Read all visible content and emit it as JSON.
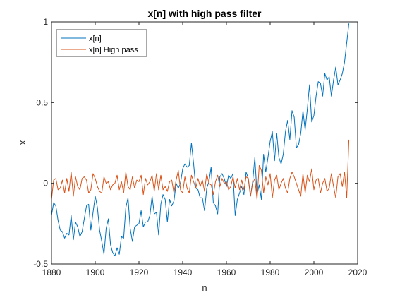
{
  "chart_data": {
    "type": "line",
    "title": "x[n] with high pass filter",
    "xlabel": "n",
    "ylabel": "x",
    "xlim": [
      1880,
      2020
    ],
    "ylim": [
      -0.5,
      1
    ],
    "xticks": [
      1880,
      1900,
      1920,
      1940,
      1960,
      1980,
      2000,
      2020
    ],
    "yticks": [
      -0.5,
      0,
      0.5,
      1
    ],
    "ytick_labels": [
      "-0.5",
      "0",
      "0.5",
      "1"
    ],
    "grid": false,
    "legend": "top-left",
    "series": [
      {
        "name": "x[n]",
        "color": "#0072BD",
        "x": [
          1880,
          1881,
          1882,
          1883,
          1884,
          1885,
          1886,
          1887,
          1888,
          1889,
          1890,
          1891,
          1892,
          1893,
          1894,
          1895,
          1896,
          1897,
          1898,
          1899,
          1900,
          1901,
          1902,
          1903,
          1904,
          1905,
          1906,
          1907,
          1908,
          1909,
          1910,
          1911,
          1912,
          1913,
          1914,
          1915,
          1916,
          1917,
          1918,
          1919,
          1920,
          1921,
          1922,
          1923,
          1924,
          1925,
          1926,
          1927,
          1928,
          1929,
          1930,
          1931,
          1932,
          1933,
          1934,
          1935,
          1936,
          1937,
          1938,
          1939,
          1940,
          1941,
          1942,
          1943,
          1944,
          1945,
          1946,
          1947,
          1948,
          1949,
          1950,
          1951,
          1952,
          1953,
          1954,
          1955,
          1956,
          1957,
          1958,
          1959,
          1960,
          1961,
          1962,
          1963,
          1964,
          1965,
          1966,
          1967,
          1968,
          1969,
          1970,
          1971,
          1972,
          1973,
          1974,
          1975,
          1976,
          1977,
          1978,
          1979,
          1980,
          1981,
          1982,
          1983,
          1984,
          1985,
          1986,
          1987,
          1988,
          1989,
          1990,
          1991,
          1992,
          1993,
          1994,
          1995,
          1996,
          1997,
          1998,
          1999,
          2000,
          2001,
          2002,
          2003,
          2004,
          2005,
          2006,
          2007,
          2008,
          2009,
          2010,
          2011,
          2012,
          2013,
          2014,
          2015,
          2016
        ],
        "values": [
          -0.2,
          -0.12,
          -0.14,
          -0.23,
          -0.29,
          -0.3,
          -0.34,
          -0.31,
          -0.32,
          -0.2,
          -0.35,
          -0.24,
          -0.27,
          -0.33,
          -0.3,
          -0.22,
          -0.14,
          -0.13,
          -0.29,
          -0.18,
          -0.08,
          -0.15,
          -0.29,
          -0.36,
          -0.44,
          -0.28,
          -0.22,
          -0.38,
          -0.43,
          -0.45,
          -0.4,
          -0.44,
          -0.33,
          -0.34,
          -0.15,
          -0.09,
          -0.28,
          -0.36,
          -0.27,
          -0.26,
          -0.25,
          -0.17,
          -0.27,
          -0.24,
          -0.24,
          -0.2,
          -0.08,
          -0.19,
          -0.18,
          -0.32,
          -0.13,
          -0.07,
          -0.1,
          -0.24,
          -0.1,
          -0.14,
          -0.11,
          0.0,
          -0.03,
          0.0,
          0.09,
          0.12,
          0.1,
          0.11,
          0.25,
          0.12,
          -0.03,
          -0.04,
          -0.09,
          -0.09,
          -0.17,
          -0.03,
          0.01,
          0.1,
          -0.12,
          -0.14,
          -0.19,
          0.04,
          0.06,
          0.03,
          -0.02,
          0.05,
          0.03,
          0.06,
          -0.2,
          -0.1,
          -0.06,
          -0.02,
          -0.07,
          0.07,
          0.03,
          -0.08,
          0.01,
          0.16,
          -0.07,
          -0.01,
          -0.1,
          0.18,
          0.07,
          0.16,
          0.26,
          0.32,
          0.14,
          0.31,
          0.16,
          0.12,
          0.18,
          0.32,
          0.39,
          0.27,
          0.45,
          0.41,
          0.22,
          0.24,
          0.31,
          0.45,
          0.33,
          0.46,
          0.61,
          0.38,
          0.42,
          0.54,
          0.63,
          0.62,
          0.54,
          0.68,
          0.64,
          0.66,
          0.54,
          0.64,
          0.72,
          0.61,
          0.64,
          0.68,
          0.75,
          0.87,
          0.99
        ]
      },
      {
        "name": "x[n] High pass",
        "color": "#D95319",
        "x": [
          1880,
          1881,
          1882,
          1883,
          1884,
          1885,
          1886,
          1887,
          1888,
          1889,
          1890,
          1891,
          1892,
          1893,
          1894,
          1895,
          1896,
          1897,
          1898,
          1899,
          1900,
          1901,
          1902,
          1903,
          1904,
          1905,
          1906,
          1907,
          1908,
          1909,
          1910,
          1911,
          1912,
          1913,
          1914,
          1915,
          1916,
          1917,
          1918,
          1919,
          1920,
          1921,
          1922,
          1923,
          1924,
          1925,
          1926,
          1927,
          1928,
          1929,
          1930,
          1931,
          1932,
          1933,
          1934,
          1935,
          1936,
          1937,
          1938,
          1939,
          1940,
          1941,
          1942,
          1943,
          1944,
          1945,
          1946,
          1947,
          1948,
          1949,
          1950,
          1951,
          1952,
          1953,
          1954,
          1955,
          1956,
          1957,
          1958,
          1959,
          1960,
          1961,
          1962,
          1963,
          1964,
          1965,
          1966,
          1967,
          1968,
          1969,
          1970,
          1971,
          1972,
          1973,
          1974,
          1975,
          1976,
          1977,
          1978,
          1979,
          1980,
          1981,
          1982,
          1983,
          1984,
          1985,
          1986,
          1987,
          1988,
          1989,
          1990,
          1991,
          1992,
          1993,
          1994,
          1995,
          1996,
          1997,
          1998,
          1999,
          2000,
          2001,
          2002,
          2003,
          2004,
          2005,
          2006,
          2007,
          2008,
          2009,
          2010,
          2011,
          2012,
          2013,
          2014,
          2015,
          2016
        ],
        "values": [
          -0.1,
          0.02,
          0.03,
          -0.04,
          -0.03,
          0.02,
          -0.06,
          0.03,
          -0.05,
          0.07,
          -0.08,
          0.04,
          -0.02,
          -0.04,
          0.03,
          0.04,
          0.02,
          -0.06,
          -0.04,
          0.06,
          0.03,
          -0.02,
          -0.05,
          -0.06,
          0.04,
          0.0,
          0.01,
          -0.04,
          -0.01,
          0.0,
          0.05,
          -0.04,
          0.01,
          -0.06,
          0.07,
          -0.02,
          -0.04,
          0.04,
          -0.03,
          0.02,
          0.01,
          0.05,
          -0.07,
          0.03,
          -0.01,
          0.01,
          0.05,
          -0.05,
          0.06,
          -0.04,
          0.05,
          -0.04,
          -0.02,
          -0.05,
          0.01,
          0.02,
          -0.06,
          0.02,
          0.08,
          -0.04,
          -0.06,
          0.04,
          -0.03,
          -0.06,
          0.05,
          0.01,
          -0.03,
          0.03,
          -0.02,
          0.02,
          -0.05,
          0.06,
          0.0,
          -0.01,
          -0.07,
          0.01,
          0.05,
          -0.02,
          0.03,
          0.0,
          0.01,
          -0.04,
          -0.02,
          0.04,
          -0.03,
          0.03,
          -0.04,
          0.02,
          -0.04,
          0.04,
          0.03,
          -0.08,
          0.0,
          0.03,
          -0.1,
          0.11,
          0.08,
          -0.06,
          0.04,
          -0.01,
          0.06,
          -0.09,
          0.02,
          0.05,
          -0.04,
          0.0,
          0.03,
          -0.03,
          -0.06,
          0.03,
          0.07,
          0.04,
          0.0,
          -0.04,
          -0.08,
          0.06,
          -0.06,
          0.05,
          0.01,
          0.09,
          -0.04,
          0.02,
          0.03,
          -0.06,
          0.0,
          0.03,
          -0.05,
          -0.03,
          0.06,
          -0.02,
          -0.09,
          0.04,
          0.06,
          -0.02,
          0.07,
          -0.09,
          0.27
        ]
      }
    ]
  }
}
